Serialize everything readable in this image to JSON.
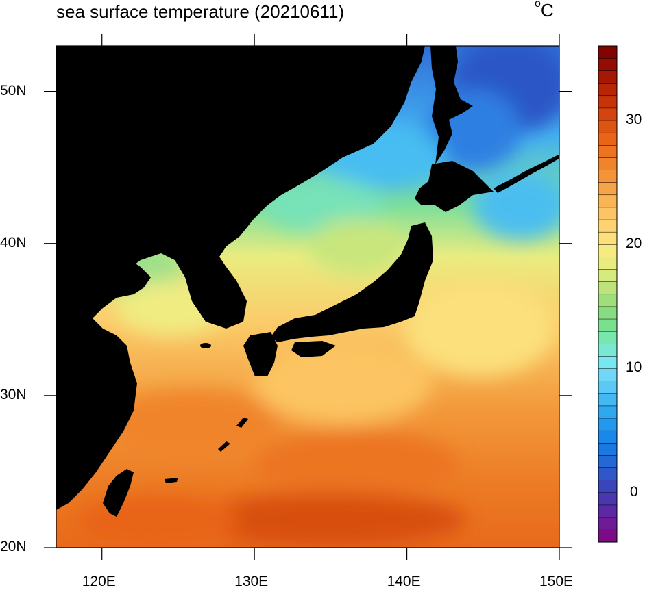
{
  "title": "sea surface temperature (20210611)",
  "units": {
    "sup": "o",
    "main": "C"
  },
  "map": {
    "lon_range": [
      117,
      150
    ],
    "lat_range": [
      20,
      53
    ],
    "lon_ticks": [
      {
        "value": 120,
        "label": "120E"
      },
      {
        "value": 130,
        "label": "130E"
      },
      {
        "value": 140,
        "label": "140E"
      },
      {
        "value": 150,
        "label": "150E"
      }
    ],
    "lat_ticks": [
      {
        "value": 20,
        "label": "20N"
      },
      {
        "value": 30,
        "label": "30N"
      },
      {
        "value": 40,
        "label": "40N"
      },
      {
        "value": 50,
        "label": "50N"
      }
    ],
    "land_color": "#000000"
  },
  "colorbar": {
    "range": [
      -4,
      36
    ],
    "levels": 40,
    "tick_labels": [
      {
        "value": 0,
        "label": "0"
      },
      {
        "value": 10,
        "label": "10"
      },
      {
        "value": 20,
        "label": "20"
      },
      {
        "value": 30,
        "label": "30"
      }
    ],
    "colors": [
      "#7a0d87",
      "#6f1b95",
      "#5d28a3",
      "#4a37b0",
      "#3a45bb",
      "#2f57c8",
      "#2468d6",
      "#1a78e2",
      "#1a88ea",
      "#2398ee",
      "#30a8f0",
      "#44b8f2",
      "#5bc8f5",
      "#6fd8f6",
      "#79e6f0",
      "#7ae8d0",
      "#79e6b0",
      "#7ae090",
      "#86dc80",
      "#a0de7c",
      "#bde47c",
      "#d6ea7e",
      "#eaec80",
      "#f8ea82",
      "#fde07c",
      "#fdd270",
      "#fcc462",
      "#f9b454",
      "#f6a446",
      "#f39438",
      "#f0842a",
      "#ec7420",
      "#e86418",
      "#e05412",
      "#d6440e",
      "#c8340a",
      "#b82606",
      "#a61804",
      "#940c02",
      "#820400"
    ]
  }
}
